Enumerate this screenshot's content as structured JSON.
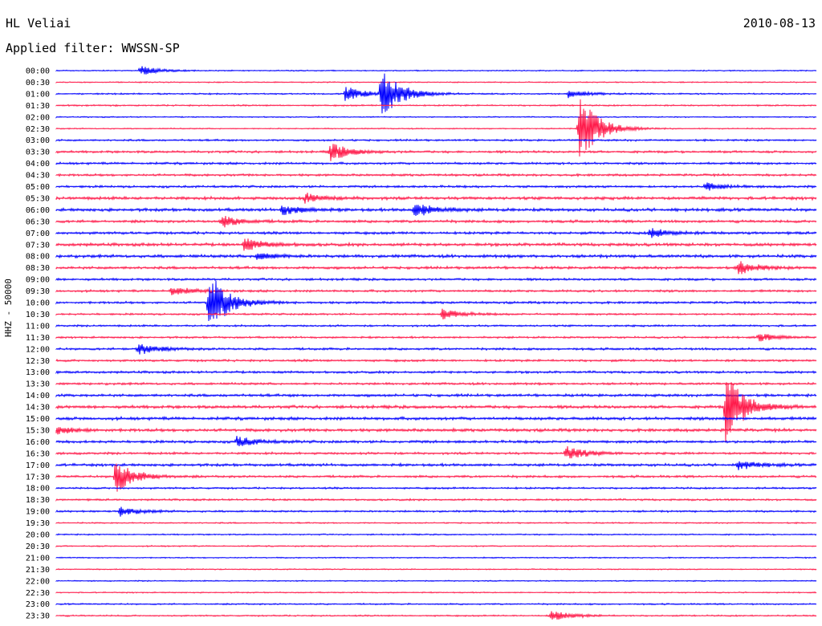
{
  "header": {
    "station": "HL Veliai",
    "date": "2010-08-13",
    "filter_label": "Applied filter: WWSSN-SP"
  },
  "axis": {
    "ylabel": "HHZ - 50000"
  },
  "colors": {
    "even_trace": "#0000ff",
    "odd_trace": "#ff1a4a"
  },
  "chart_data": {
    "type": "line",
    "ylabel": "HHZ - 50000",
    "time_labels": [
      "00:00",
      "00:30",
      "01:00",
      "01:30",
      "02:00",
      "02:30",
      "03:00",
      "03:30",
      "04:00",
      "04:30",
      "05:00",
      "05:30",
      "06:00",
      "06:30",
      "07:00",
      "07:30",
      "08:00",
      "08:30",
      "09:00",
      "09:30",
      "10:00",
      "10:30",
      "11:00",
      "11:30",
      "12:00",
      "12:30",
      "13:00",
      "13:30",
      "14:00",
      "14:30",
      "15:00",
      "15:30",
      "16:00",
      "16:30",
      "17:00",
      "17:30",
      "18:00",
      "18:30",
      "19:00",
      "19:30",
      "20:00",
      "20:30",
      "21:00",
      "21:30",
      "22:00",
      "22:30",
      "23:00",
      "23:30"
    ],
    "trace_minutes": 30,
    "noise_level": [
      0.6,
      0.6,
      0.8,
      0.8,
      0.6,
      0.6,
      1.0,
      1.2,
      1.2,
      1.2,
      1.2,
      1.6,
      1.6,
      1.4,
      1.4,
      1.6,
      1.6,
      1.4,
      1.2,
      1.2,
      1.2,
      1.0,
      1.0,
      1.0,
      1.2,
      1.2,
      1.2,
      1.2,
      1.4,
      1.6,
      1.6,
      1.6,
      1.4,
      1.2,
      1.4,
      1.2,
      1.0,
      1.0,
      1.0,
      0.7,
      0.7,
      0.7,
      0.6,
      0.6,
      0.6,
      0.6,
      0.8,
      0.8
    ],
    "events": [
      {
        "trace": "00:00",
        "minute": 3.3,
        "amplitude": 6
      },
      {
        "trace": "01:00",
        "minute": 11.4,
        "amplitude": 10
      },
      {
        "trace": "01:00",
        "minute": 12.8,
        "amplitude": 36
      },
      {
        "trace": "01:00",
        "minute": 20.2,
        "amplitude": 5
      },
      {
        "trace": "02:30",
        "minute": 20.6,
        "amplitude": 48
      },
      {
        "trace": "03:30",
        "minute": 10.8,
        "amplitude": 12
      },
      {
        "trace": "05:00",
        "minute": 25.6,
        "amplitude": 5
      },
      {
        "trace": "05:30",
        "minute": 9.8,
        "amplitude": 6
      },
      {
        "trace": "06:00",
        "minute": 8.9,
        "amplitude": 7
      },
      {
        "trace": "06:00",
        "minute": 14.1,
        "amplitude": 11
      },
      {
        "trace": "06:30",
        "minute": 6.5,
        "amplitude": 8
      },
      {
        "trace": "07:00",
        "minute": 23.4,
        "amplitude": 7
      },
      {
        "trace": "07:30",
        "minute": 7.4,
        "amplitude": 8
      },
      {
        "trace": "08:00",
        "minute": 7.9,
        "amplitude": 5
      },
      {
        "trace": "08:30",
        "minute": 26.9,
        "amplitude": 9
      },
      {
        "trace": "09:30",
        "minute": 4.5,
        "amplitude": 6
      },
      {
        "trace": "10:00",
        "minute": 6.0,
        "amplitude": 42
      },
      {
        "trace": "10:30",
        "minute": 15.2,
        "amplitude": 7
      },
      {
        "trace": "11:30",
        "minute": 27.7,
        "amplitude": 5
      },
      {
        "trace": "12:00",
        "minute": 3.2,
        "amplitude": 8
      },
      {
        "trace": "14:30",
        "minute": 26.4,
        "amplitude": 45
      },
      {
        "trace": "15:30",
        "minute": 0.0,
        "amplitude": 5
      },
      {
        "trace": "16:00",
        "minute": 7.1,
        "amplitude": 7
      },
      {
        "trace": "16:30",
        "minute": 20.1,
        "amplitude": 10
      },
      {
        "trace": "17:00",
        "minute": 26.9,
        "amplitude": 6
      },
      {
        "trace": "17:30",
        "minute": 2.3,
        "amplitude": 22
      },
      {
        "trace": "19:00",
        "minute": 2.5,
        "amplitude": 6
      },
      {
        "trace": "23:30",
        "minute": 19.5,
        "amplitude": 8
      }
    ]
  }
}
